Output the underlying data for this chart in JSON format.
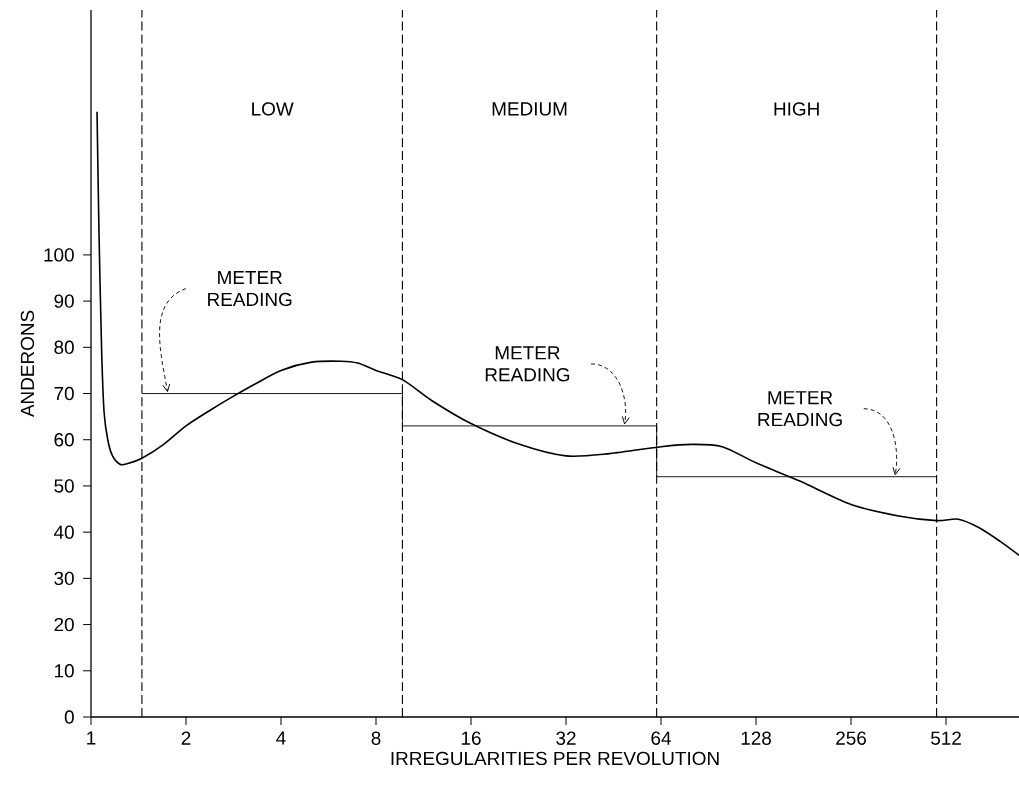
{
  "chart_data": {
    "type": "line",
    "xlabel": "IRREGULARITIES PER REVOLUTION",
    "ylabel": "ANDERONS",
    "series": [
      {
        "color": "#000000",
        "x": [
          1.045,
          1.06,
          1.08,
          1.1,
          1.13,
          1.17,
          1.235,
          1.3,
          1.45,
          1.7,
          2,
          2.4,
          2.76,
          3.3,
          4,
          5,
          6.2,
          7,
          8,
          9.7,
          12,
          16,
          22.8,
          32,
          44,
          64,
          80,
          100,
          128,
          177,
          256,
          362,
          478,
          560,
          650,
          760,
          872
        ],
        "values": [
          131,
          105,
          80,
          66,
          60,
          56.5,
          54.7,
          54.8,
          56,
          59,
          63,
          66.5,
          69,
          72,
          75,
          76.8,
          77,
          76.6,
          75,
          73,
          68.5,
          63.5,
          59,
          56.5,
          57,
          58.5,
          59,
          58.5,
          55,
          51,
          46,
          43.5,
          42.5,
          42.8,
          41,
          38,
          35
        ]
      },
      {
        "type": "step",
        "color": "#000000",
        "x": [
          1.45,
          9.7,
          62,
          478
        ],
        "values": [
          70,
          63,
          52,
          52
        ]
      }
    ],
    "ref_lines": [
      {
        "axis": "x",
        "value": 1.45,
        "line_style": "dashed"
      },
      {
        "axis": "x",
        "value": 9.7,
        "line_style": "dashed"
      },
      {
        "axis": "x",
        "value": 62,
        "line_style": "dashed"
      },
      {
        "axis": "x",
        "value": 478,
        "line_style": "dashed"
      }
    ],
    "annotations": [
      "LOW",
      "MEDIUM",
      "HIGH",
      {
        "text": "METER READING",
        "x": 1.75,
        "y": 70
      },
      {
        "text": "METER READING",
        "x": 49,
        "y": 63
      },
      {
        "text": "METER READING",
        "x": 353,
        "y": 52
      }
    ],
    "log": "x",
    "xlim": [
      1,
      872
    ],
    "ylim": [
      0,
      153
    ],
    "xticks": [
      1,
      2,
      4,
      8,
      16,
      32,
      64,
      128,
      256,
      512
    ],
    "yticks": [
      0,
      10,
      20,
      30,
      40,
      50,
      60,
      70,
      80,
      90,
      100
    ],
    "grid": false
  }
}
